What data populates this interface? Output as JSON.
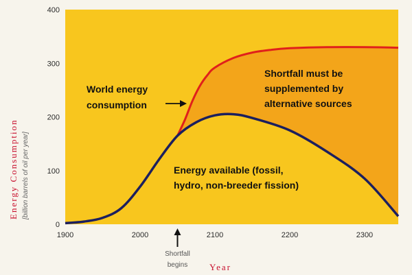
{
  "chart_data": {
    "type": "line",
    "xlim": [
      1900,
      2345
    ],
    "ylim": [
      0,
      400
    ],
    "x_ticks": [
      1900,
      2000,
      2100,
      2200,
      2300
    ],
    "y_ticks": [
      0,
      100,
      200,
      300,
      400
    ],
    "xlabel": "Year",
    "ylabel": "Energy Consumption",
    "ylabel_sub": "[billion barrels of oil per year]",
    "series": [
      {
        "name": "World energy consumption",
        "color": "#e0201b",
        "x": [
          2050,
          2060,
          2070,
          2080,
          2090,
          2100,
          2125,
          2150,
          2175,
          2200,
          2250,
          2300,
          2345
        ],
        "y": [
          165,
          195,
          230,
          258,
          278,
          292,
          310,
          320,
          325,
          328,
          330,
          330,
          329
        ]
      },
      {
        "name": "Energy available (fossil, hydro, non-breeder fission)",
        "color": "#1c1f5e",
        "x": [
          1900,
          1925,
          1950,
          1975,
          2000,
          2025,
          2050,
          2075,
          2100,
          2125,
          2150,
          2200,
          2250,
          2300,
          2345
        ],
        "y": [
          2,
          5,
          12,
          30,
          70,
          120,
          165,
          190,
          203,
          205,
          198,
          175,
          135,
          85,
          15
        ]
      }
    ],
    "annotations": {
      "consumption_lines": [
        "World energy",
        "consumption"
      ],
      "shortfall_lines": [
        "Shortfall must be",
        "supplemented by",
        "alternative sources"
      ],
      "available_lines": [
        "Energy available (fossil,",
        "hydro, non-breeder fission)"
      ],
      "shortfall_begins_lines": [
        "Shortfall",
        "begins"
      ],
      "shortfall_begins_x": 2050
    },
    "colors": {
      "plot_bg": "#f8c61e",
      "shortfall_fill": "#f3a51a",
      "axis_title": "#c8102e"
    }
  }
}
